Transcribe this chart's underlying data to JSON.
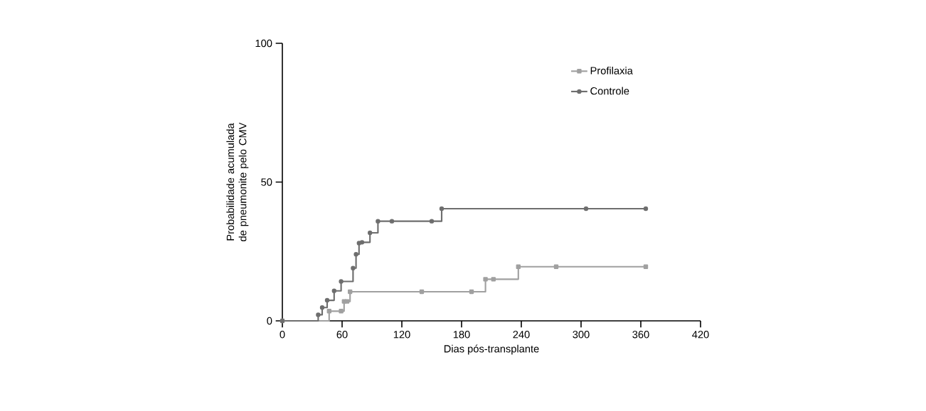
{
  "chart_data": {
    "type": "step",
    "xlabel": "Dias pós-transplante",
    "ylabel": "Probabilidade acumulada de pneumonite pelo CMV",
    "xlim": [
      0,
      420
    ],
    "ylim": [
      0,
      100
    ],
    "xticks": [
      0,
      60,
      120,
      180,
      240,
      300,
      360,
      420
    ],
    "yticks": [
      0,
      50,
      100
    ],
    "grid": false,
    "legend": "top right",
    "line_style": "solid",
    "series": [
      {
        "name": "Profilaxia",
        "color": "#a0a0a0",
        "marker": "square",
        "x": [
          0,
          47,
          59,
          62,
          65,
          68,
          140,
          190,
          204,
          212,
          237,
          275,
          365
        ],
        "values": [
          0,
          3.5,
          3.5,
          7,
          7,
          10.5,
          10.5,
          10.5,
          15,
          15,
          19.5,
          19.5,
          19.5
        ]
      },
      {
        "name": "Controle",
        "color": "#6e6e6e",
        "marker": "circle",
        "x": [
          0,
          36,
          40,
          45,
          52,
          59,
          71,
          74,
          77,
          80,
          88,
          96,
          110,
          150,
          160,
          305,
          365
        ],
        "values": [
          0,
          2.2,
          4.8,
          7.4,
          10.8,
          14.2,
          19,
          24,
          28,
          28.3,
          31.7,
          35.9,
          35.9,
          35.9,
          40.4,
          40.4,
          40.4
        ]
      }
    ]
  }
}
